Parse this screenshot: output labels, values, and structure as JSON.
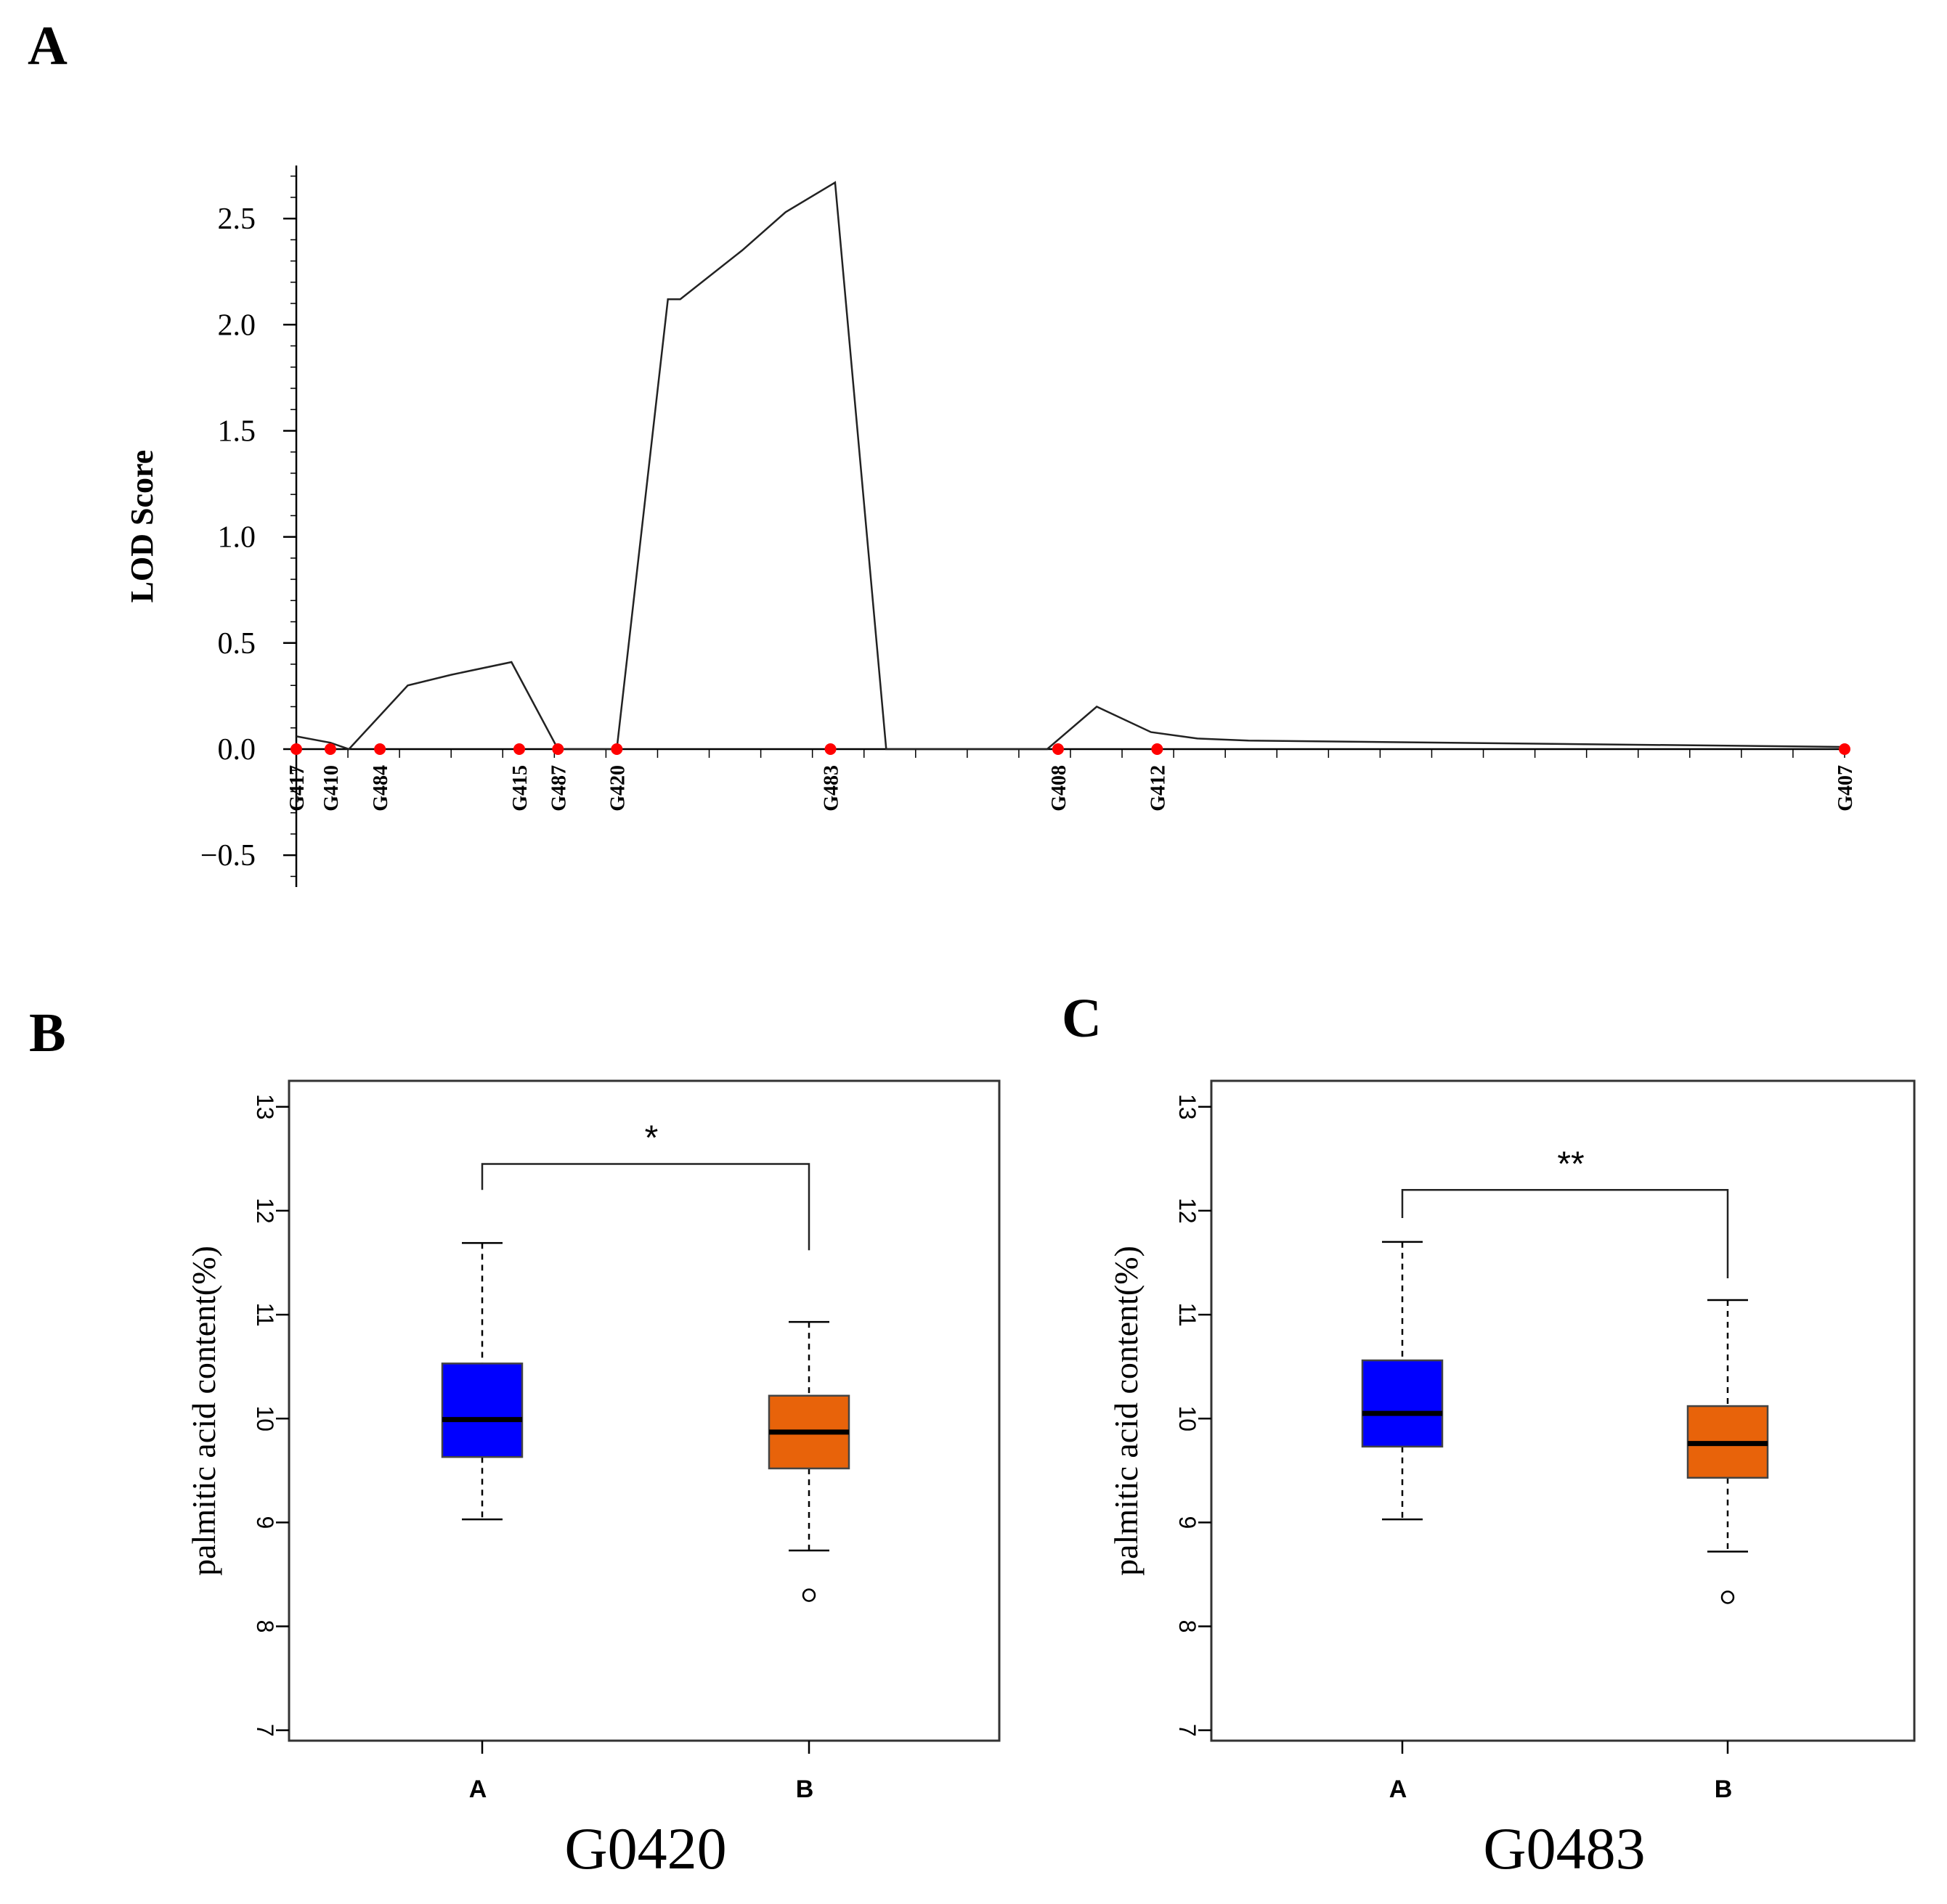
{
  "panels": {
    "A": {
      "letter": "A"
    },
    "B": {
      "letter": "B"
    },
    "C": {
      "letter": "C"
    }
  },
  "chart_data": [
    {
      "panel": "A",
      "type": "line",
      "title": "",
      "xlabel": "",
      "ylabel": "LOD Score",
      "ylim": [
        -0.65,
        2.75
      ],
      "yticks": [
        "−0.5",
        "0.0",
        "0.5",
        "1.0",
        "1.5",
        "2.0",
        "2.5"
      ],
      "ytick_values": [
        -0.5,
        0.0,
        0.5,
        1.0,
        1.5,
        2.0,
        2.5
      ],
      "xlim": [
        0,
        100
      ],
      "series": [
        {
          "x": [
            0,
            2.2,
            3.4,
            7.2,
            10,
            13.9,
            16.9,
            20.7,
            24,
            24.8,
            28.8,
            31.6,
            34.8,
            38.1,
            41.4,
            48.5,
            51.7,
            55.2,
            58.2,
            61.5,
            100
          ],
          "y": [
            0.06,
            0.03,
            0.0,
            0.3,
            0.35,
            0.41,
            0.0,
            0.0,
            2.12,
            2.12,
            2.35,
            2.53,
            2.67,
            0.0,
            0.0,
            0.0,
            0.2,
            0.08,
            0.05,
            0.04,
            0.01
          ]
        }
      ],
      "markers": [
        {
          "label": "G417",
          "x": 0
        },
        {
          "label": "G410",
          "x": 2.2
        },
        {
          "label": "G484",
          "x": 5.4
        },
        {
          "label": "G415",
          "x": 14.4
        },
        {
          "label": "G487",
          "x": 16.9
        },
        {
          "label": "G420",
          "x": 20.7
        },
        {
          "label": "G483",
          "x": 34.5
        },
        {
          "label": "G408",
          "x": 49.2
        },
        {
          "label": "G412",
          "x": 55.6
        },
        {
          "label": "G407",
          "x": 100
        }
      ],
      "marker_color": "#ff0000"
    },
    {
      "panel": "B",
      "type": "box",
      "title": "",
      "xlabel": "G0420",
      "ylabel": "palmitic acid content(%)",
      "ylim": [
        6.9,
        13.25
      ],
      "yticks": [
        "7",
        "8",
        "9",
        "10",
        "11",
        "12",
        "13"
      ],
      "ytick_values": [
        7,
        8,
        9,
        10,
        11,
        12,
        13
      ],
      "categories": [
        "A",
        "B"
      ],
      "boxes": [
        {
          "name": "A",
          "whisker_low": 9.03,
          "q1": 9.63,
          "median": 9.99,
          "q3": 10.53,
          "whisker_high": 11.69,
          "outliers": [],
          "color": "#0000ff"
        },
        {
          "name": "B",
          "whisker_low": 8.73,
          "q1": 9.52,
          "median": 9.87,
          "q3": 10.22,
          "whisker_high": 10.93,
          "outliers": [
            8.3
          ],
          "color": "#e8630a"
        }
      ],
      "significance": {
        "label": "*",
        "y": 12.45,
        "y_drop_a": 12.2,
        "y_drop_b": 11.62
      }
    },
    {
      "panel": "C",
      "type": "box",
      "title": "",
      "xlabel": "G0483",
      "ylabel": "palmitic acid content(%)",
      "ylim": [
        6.9,
        13.25
      ],
      "yticks": [
        "7",
        "8",
        "9",
        "10",
        "11",
        "12",
        "13"
      ],
      "ytick_values": [
        7,
        8,
        9,
        10,
        11,
        12,
        13
      ],
      "categories": [
        "A",
        "B"
      ],
      "boxes": [
        {
          "name": "A",
          "whisker_low": 9.03,
          "q1": 9.73,
          "median": 10.05,
          "q3": 10.56,
          "whisker_high": 11.7,
          "outliers": [],
          "color": "#0000ff"
        },
        {
          "name": "B",
          "whisker_low": 8.72,
          "q1": 9.43,
          "median": 9.76,
          "q3": 10.12,
          "whisker_high": 11.14,
          "outliers": [
            8.28
          ],
          "color": "#e8630a"
        }
      ],
      "significance": {
        "label": "**",
        "y": 12.2,
        "y_drop_a": 11.93,
        "y_drop_b": 11.35
      }
    }
  ]
}
